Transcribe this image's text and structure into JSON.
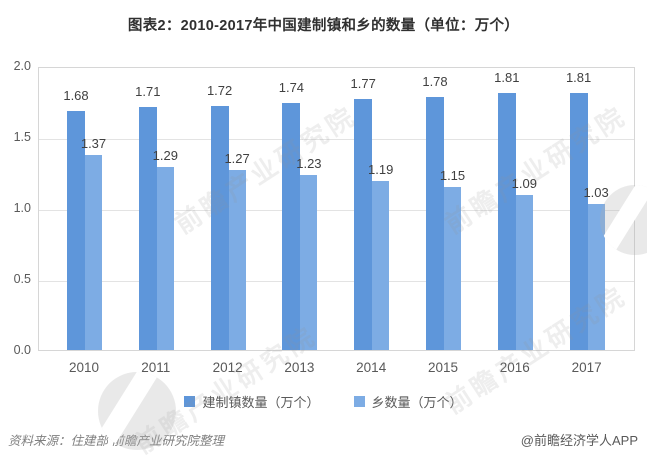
{
  "chart_data": {
    "type": "bar",
    "title": "图表2：2010-2017年中国建制镇和乡的数量（单位：万个）",
    "categories": [
      "2010",
      "2011",
      "2012",
      "2013",
      "2014",
      "2015",
      "2016",
      "2017"
    ],
    "series": [
      {
        "name": "建制镇数量（万个）",
        "color": "#5E96DA",
        "values": [
          1.68,
          1.71,
          1.72,
          1.74,
          1.77,
          1.78,
          1.81,
          1.81
        ]
      },
      {
        "name": "乡数量（万个）",
        "color": "#7DACE4",
        "values": [
          1.37,
          1.29,
          1.27,
          1.23,
          1.19,
          1.15,
          1.09,
          1.03
        ]
      }
    ],
    "ylim": [
      0,
      2.0
    ],
    "ytick_labels": [
      "2.0",
      "1.5",
      "1.0",
      "0.5",
      "0.0"
    ],
    "grid": true,
    "legend_position": "bottom"
  },
  "footer": {
    "source": "资料来源：住建部  前瞻产业研究院整理",
    "credit": "@前瞻经济学人APP"
  },
  "watermark": {
    "text": "前瞻产业研究院"
  },
  "colors": {
    "grid": "#e3e3e3",
    "plot_border": "#d6d6d6",
    "title_text": "#303030",
    "axis_text": "#595959",
    "data_label_text": "#404040"
  }
}
